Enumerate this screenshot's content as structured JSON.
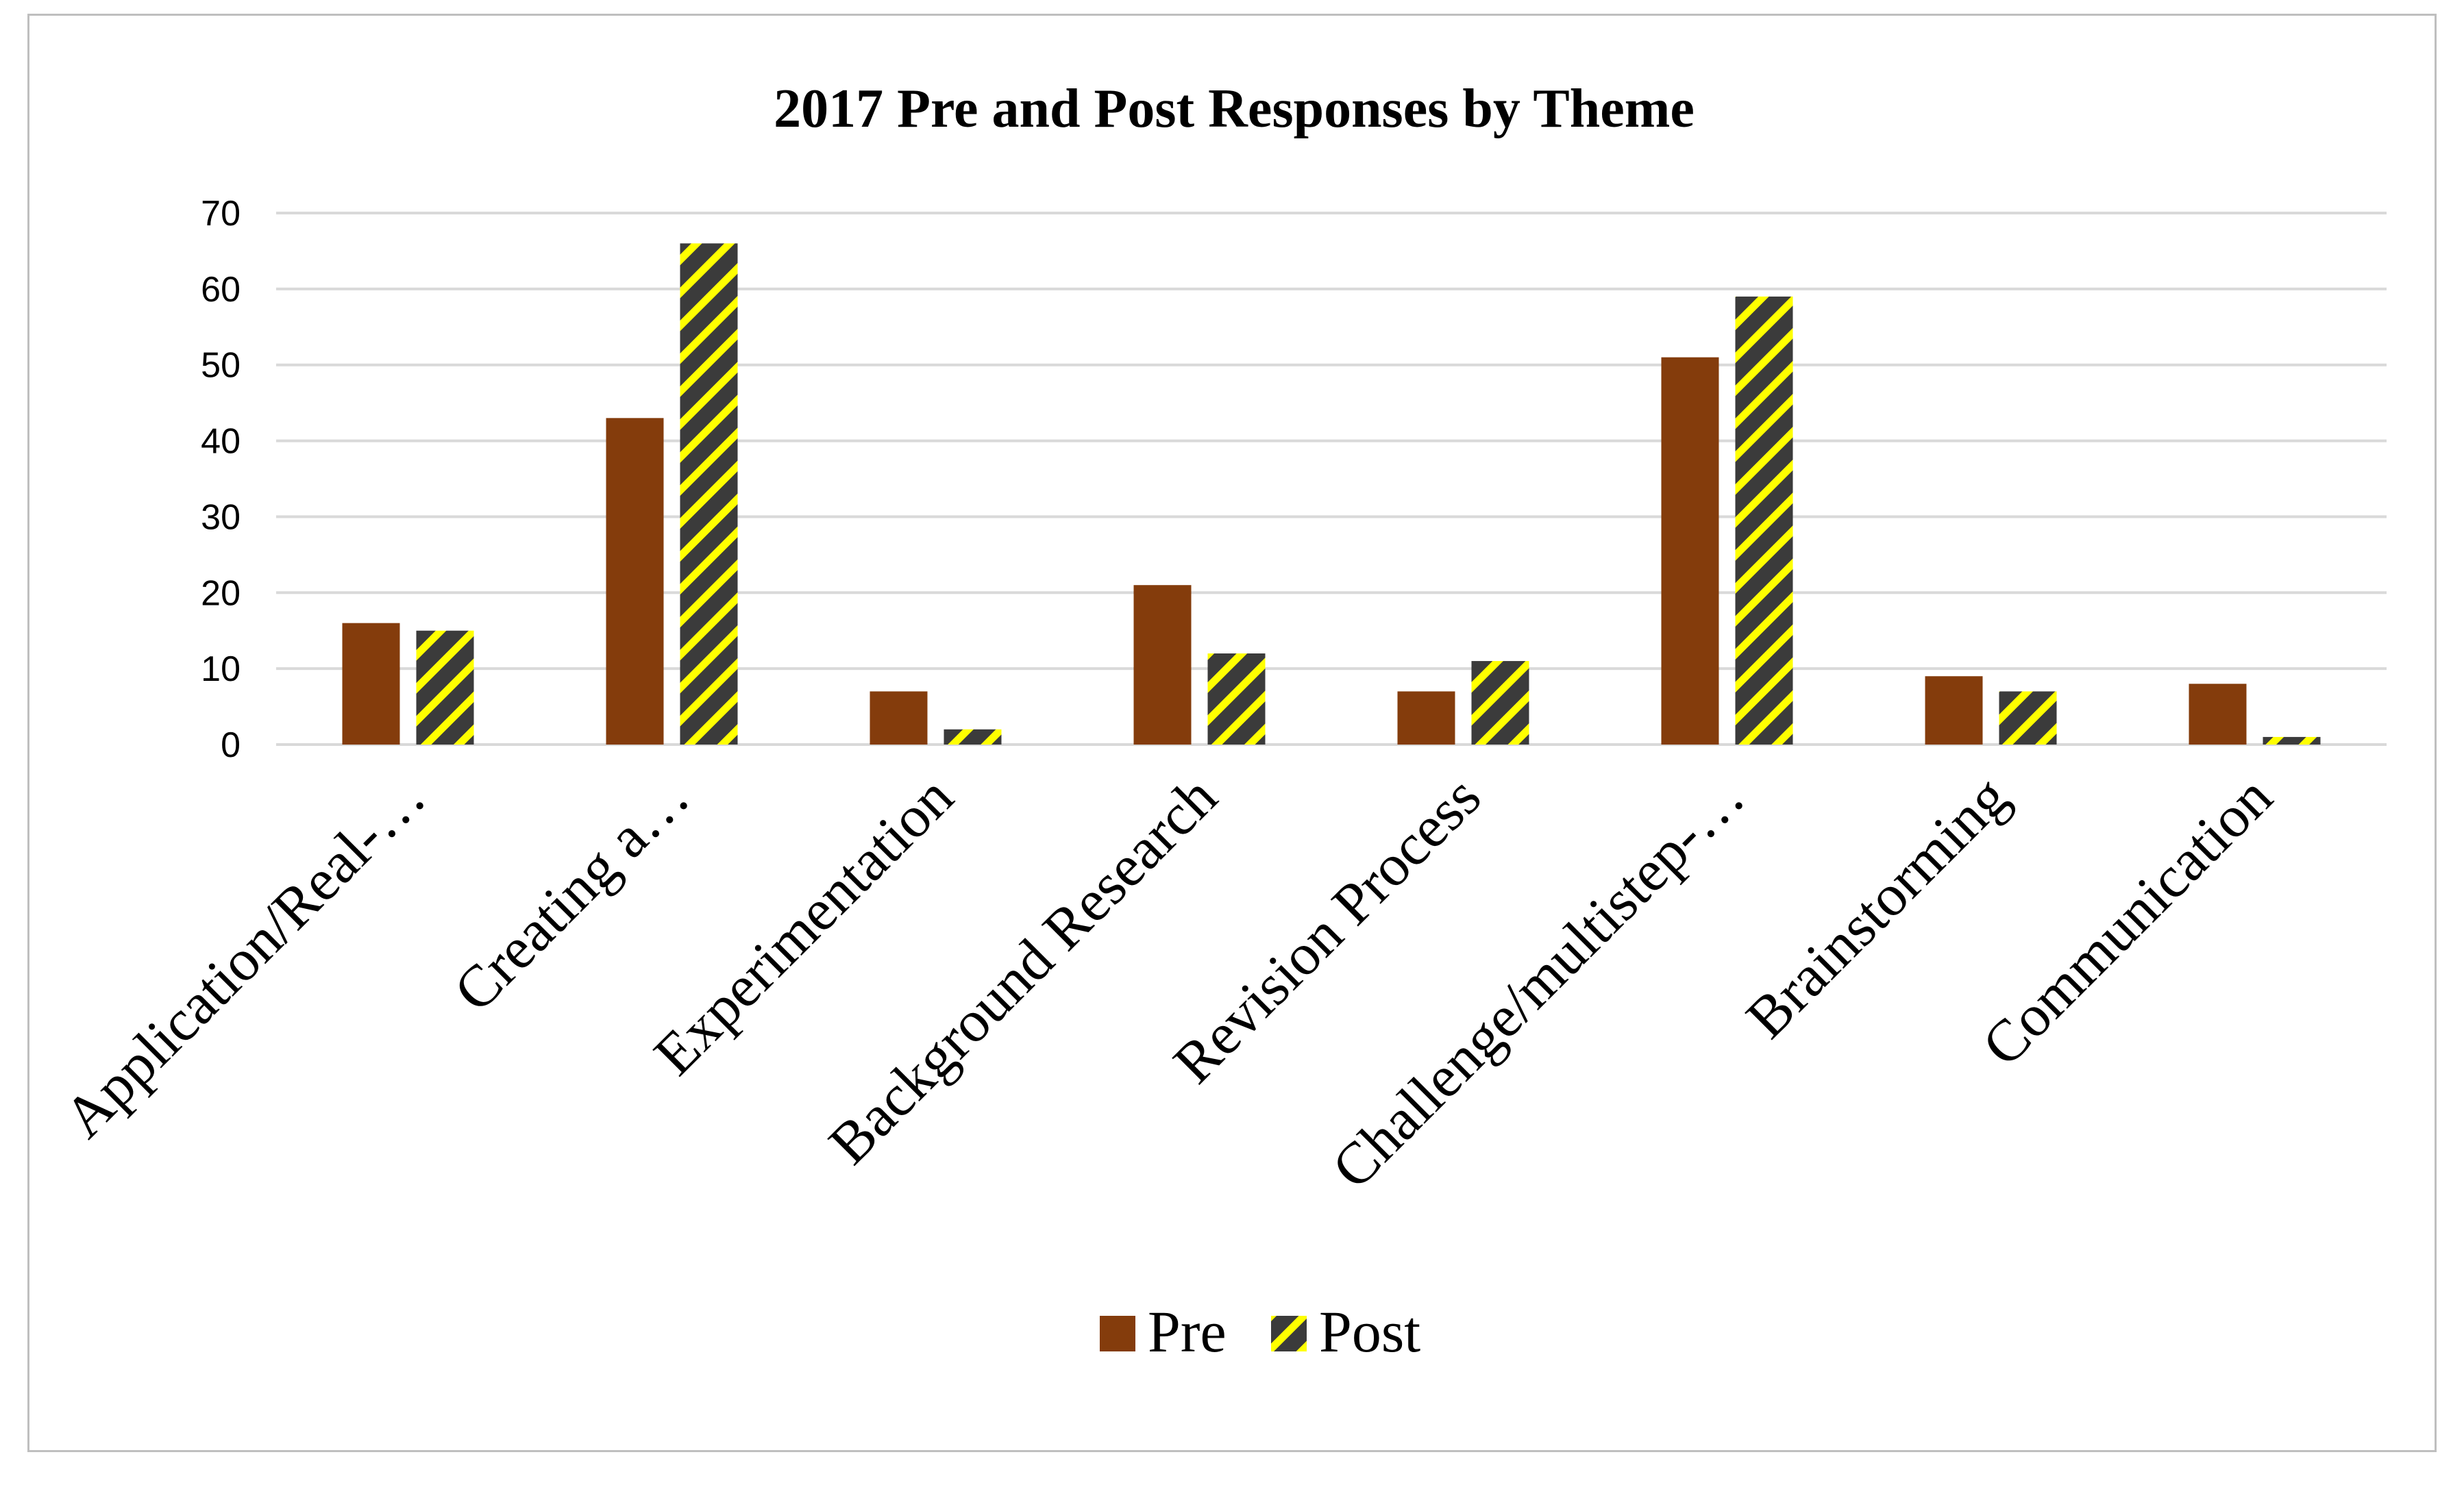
{
  "chart_data": {
    "type": "bar",
    "title": "2017 Pre and Post Responses by Theme",
    "xlabel": "",
    "ylabel": "",
    "ylim": [
      0,
      70
    ],
    "yticks": [
      0,
      10,
      20,
      30,
      40,
      50,
      60,
      70
    ],
    "grid": true,
    "legend_position": "bottom",
    "categories": [
      "Application/Real-…",
      "Creating a…",
      "Experimentation",
      "Background Research",
      "Revision Process",
      "Challenge/multistep-…",
      "Brainstorming",
      "Communication"
    ],
    "series": [
      {
        "name": "Pre",
        "values": [
          16,
          43,
          7,
          21,
          7,
          51,
          9,
          8
        ],
        "color": "#843c0c"
      },
      {
        "name": "Post",
        "values": [
          15,
          66,
          2,
          12,
          11,
          59,
          7,
          1
        ],
        "color": "#3b3b3b",
        "pattern_color": "#ffff00"
      }
    ]
  }
}
